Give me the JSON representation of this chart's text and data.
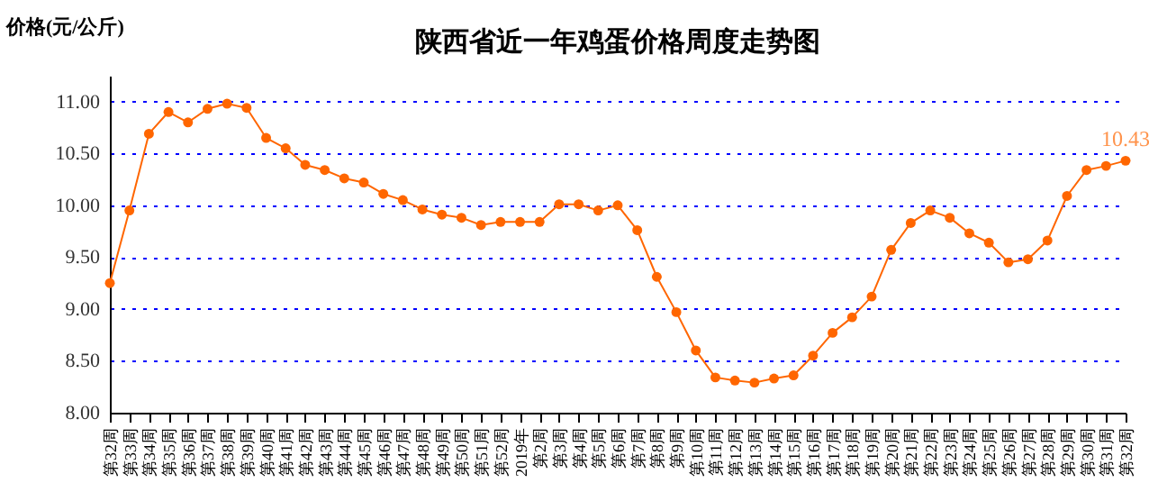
{
  "chart_data": {
    "type": "line",
    "title": "陕西省近一年鸡蛋价格周度走势图",
    "ylabel": "价格(元/公斤)",
    "categories": [
      "第32周",
      "第33周",
      "第34周",
      "第35周",
      "第36周",
      "第37周",
      "第38周",
      "第39周",
      "第40周",
      "第41周",
      "第42周",
      "第43周",
      "第44周",
      "第45周",
      "第46周",
      "第47周",
      "第48周",
      "第49周",
      "第50周",
      "第51周",
      "第52周",
      "2019年",
      "第2周",
      "第3周",
      "第4周",
      "第5周",
      "第6周",
      "第7周",
      "第8周",
      "第9周",
      "第10周",
      "第11周",
      "第12周",
      "第13周",
      "第14周",
      "第15周",
      "第16周",
      "第17周",
      "第18周",
      "第19周",
      "第20周",
      "第21周",
      "第22周",
      "第23周",
      "第24周",
      "第25周",
      "第26周",
      "第27周",
      "第28周",
      "第29周",
      "第30周",
      "第31周",
      "第32周"
    ],
    "series": [
      {
        "color": "#ff6600",
        "values": [
          9.25,
          9.95,
          10.69,
          10.9,
          10.8,
          10.93,
          10.98,
          10.94,
          10.65,
          10.55,
          10.39,
          10.34,
          10.26,
          10.22,
          10.11,
          10.05,
          9.96,
          9.91,
          9.88,
          9.81,
          9.84,
          9.84,
          9.84,
          10.01,
          10.01,
          9.95,
          10.0,
          9.76,
          9.31,
          8.97,
          8.6,
          8.34,
          8.31,
          8.29,
          8.33,
          8.36,
          8.55,
          8.77,
          8.92,
          9.12,
          9.57,
          9.83,
          9.95,
          9.88,
          9.73,
          9.64,
          9.45,
          9.48,
          9.66,
          10.09,
          10.34,
          10.38,
          10.43
        ],
        "value_labels": [
          null,
          null,
          null,
          null,
          null,
          null,
          null,
          null,
          null,
          null,
          null,
          null,
          null,
          null,
          null,
          null,
          null,
          null,
          null,
          null,
          null,
          null,
          null,
          null,
          null,
          null,
          null,
          null,
          null,
          null,
          null,
          null,
          null,
          null,
          null,
          null,
          null,
          null,
          null,
          null,
          null,
          null,
          null,
          null,
          null,
          null,
          null,
          null,
          null,
          null,
          null,
          null,
          "10.43"
        ]
      }
    ],
    "ylim": [
      8,
      11.25
    ],
    "yticks": [
      {
        "value": 8,
        "label": "8.00"
      },
      {
        "value": 8.5,
        "label": "8.50"
      },
      {
        "value": 9,
        "label": "9.00"
      },
      {
        "value": 9.5,
        "label": "9.50"
      },
      {
        "value": 10,
        "label": "10.00"
      },
      {
        "value": 10.5,
        "label": "10.50"
      },
      {
        "value": 11,
        "label": "11.00"
      }
    ],
    "grid": "y",
    "marker": "circle",
    "line_style": "solid"
  }
}
